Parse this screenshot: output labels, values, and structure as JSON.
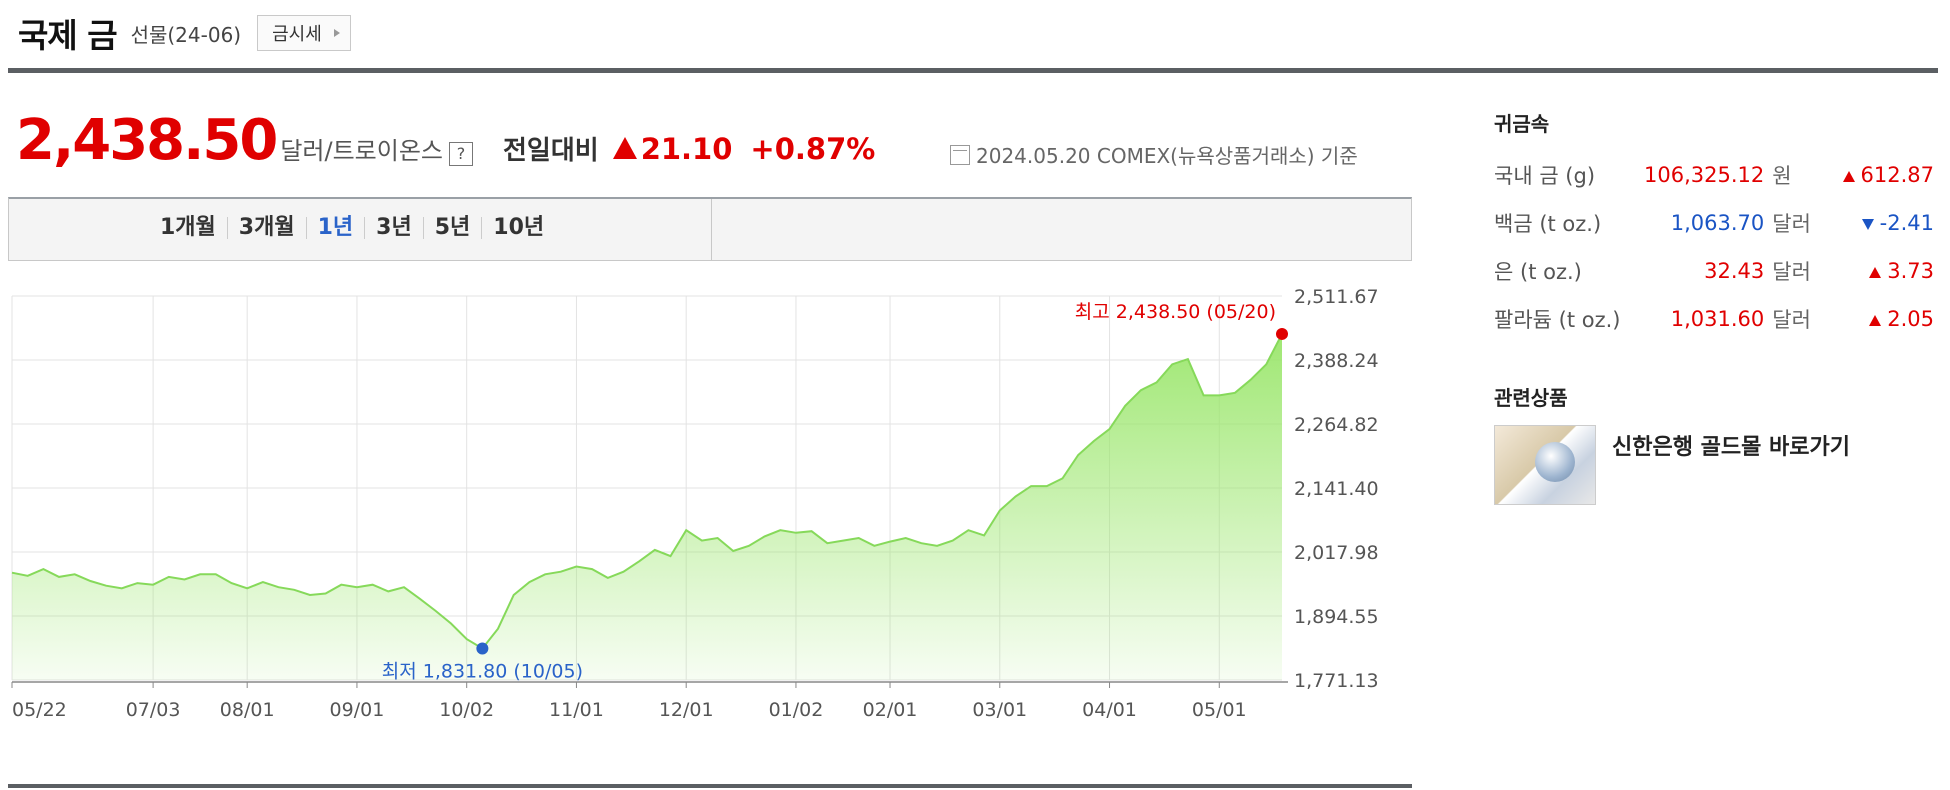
{
  "header": {
    "title": "국제 금",
    "subtitle": "선물(24-06)",
    "button_label": "금시세"
  },
  "price": {
    "value": "2,438.50",
    "unit": "달러/트로이온스",
    "help": "?",
    "compare_label": "전일대비",
    "change": "21.10",
    "change_pct": "+0.87%",
    "basis": "2024.05.20  COMEX(뉴욕상품거래소) 기준"
  },
  "tabs": [
    "1개월",
    "3개월",
    "1년",
    "3년",
    "5년",
    "10년"
  ],
  "active_tab": "1년",
  "chart_data": {
    "type": "area",
    "series": [
      {
        "x": [
          "05/22",
          "05/26",
          "05/31",
          "06/05",
          "06/09",
          "06/14",
          "06/19",
          "06/23",
          "06/28",
          "07/03",
          "07/07",
          "07/12",
          "07/17",
          "07/21",
          "07/26",
          "08/01",
          "08/05",
          "08/10",
          "08/15",
          "08/19",
          "08/24",
          "08/29",
          "09/01",
          "09/05",
          "09/10",
          "09/15",
          "09/19",
          "09/24",
          "09/29",
          "10/02",
          "10/05",
          "10/09",
          "10/14",
          "10/18",
          "10/23",
          "10/28",
          "11/01",
          "11/06",
          "11/10",
          "11/15",
          "11/20",
          "11/25",
          "11/29",
          "12/01",
          "12/05",
          "12/10",
          "12/14",
          "12/19",
          "12/24",
          "12/29",
          "01/02",
          "01/07",
          "01/12",
          "01/17",
          "01/22",
          "01/27",
          "02/01",
          "02/05",
          "02/10",
          "02/15",
          "02/19",
          "02/24",
          "02/28",
          "03/01",
          "03/05",
          "03/10",
          "03/15",
          "03/20",
          "03/25",
          "03/29",
          "04/01",
          "04/05",
          "04/10",
          "04/15",
          "04/19",
          "04/24",
          "04/29",
          "05/01",
          "05/05",
          "05/10",
          "05/15",
          "05/20"
        ],
        "values": [
          1978,
          1972,
          1985,
          1970,
          1975,
          1962,
          1953,
          1948,
          1958,
          1955,
          1970,
          1965,
          1975,
          1975,
          1958,
          1948,
          1960,
          1950,
          1945,
          1935,
          1938,
          1955,
          1950,
          1955,
          1942,
          1950,
          1928,
          1905,
          1880,
          1850,
          1831.8,
          1870,
          1935,
          1960,
          1975,
          1980,
          1990,
          1985,
          1968,
          1980,
          2000,
          2022,
          2010,
          2060,
          2040,
          2045,
          2020,
          2030,
          2048,
          2060,
          2055,
          2058,
          2035,
          2040,
          2045,
          2030,
          2038,
          2045,
          2035,
          2030,
          2040,
          2060,
          2050,
          2098,
          2125,
          2145,
          2145,
          2160,
          2205,
          2232,
          2255,
          2300,
          2330,
          2345,
          2380,
          2390,
          2320,
          2320,
          2325,
          2350,
          2380,
          2438.5
        ]
      }
    ],
    "x_ticks": [
      "05/22",
      "07/03",
      "08/01",
      "09/01",
      "10/02",
      "11/01",
      "12/01",
      "01/02",
      "02/01",
      "03/01",
      "04/01",
      "05/01"
    ],
    "y_ticks": [
      "2,511.67",
      "2,388.24",
      "2,264.82",
      "2,141.40",
      "2,017.98",
      "1,894.55",
      "1,771.13"
    ],
    "ylim": [
      1771.13,
      2511.67
    ],
    "high_label": "최고 2,438.50 (05/20)",
    "low_label": "최저 1,831.80 (10/05)",
    "fill_color": "#9ae66b",
    "line_color": "#86d95a",
    "high_color": "#e00000",
    "low_color": "#2a63c9",
    "grid": true
  },
  "side": {
    "title": "귀금속",
    "rows": [
      {
        "name": "국내 금 (g)",
        "value": "106,325.12",
        "unit": "원",
        "change": "612.87",
        "dir": "up"
      },
      {
        "name": "백금 (t oz.)",
        "value": "1,063.70",
        "unit": "달러",
        "change": "-2.41",
        "dir": "down"
      },
      {
        "name": "은 (t oz.)",
        "value": "32.43",
        "unit": "달러",
        "change": "3.73",
        "dir": "up"
      },
      {
        "name": "팔라듐 (t oz.)",
        "value": "1,031.60",
        "unit": "달러",
        "change": "2.05",
        "dir": "up"
      }
    ]
  },
  "related": {
    "title": "관련상품",
    "item_label": "신한은행 골드몰 바로가기"
  }
}
